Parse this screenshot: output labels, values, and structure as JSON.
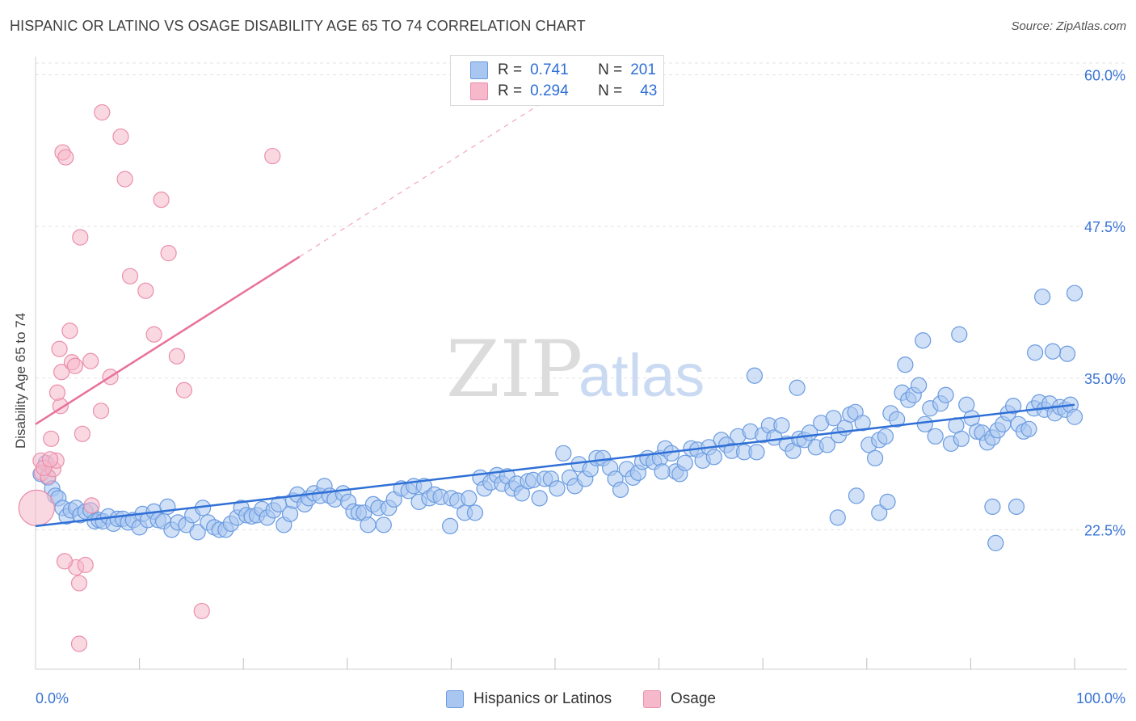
{
  "header": {
    "title": "HISPANIC OR LATINO VS OSAGE DISABILITY AGE 65 TO 74 CORRELATION CHART",
    "source": "Source: ZipAtlas.com"
  },
  "watermark": {
    "zip": "ZIP",
    "atlas": "atlas"
  },
  "legend": {
    "rows": [
      {
        "r_label": "R =",
        "r_value": "0.741",
        "n_label": "N =",
        "n_value": "201",
        "color": "#a9c6f0"
      },
      {
        "r_label": "R =",
        "r_value": "0.294",
        "n_label": "N =",
        "n_value": "43",
        "color": "#f6b8cb"
      }
    ]
  },
  "bottom_legend": [
    {
      "label": "Hispanics or Latinos",
      "color": "#a9c6f0"
    },
    {
      "label": "Osage",
      "color": "#f6b8cb"
    }
  ],
  "chart_data": {
    "type": "scatter",
    "title": "HISPANIC OR LATINO VS OSAGE DISABILITY AGE 65 TO 74 CORRELATION CHART",
    "xlabel": "",
    "ylabel": "Disability Age 65 to 74",
    "xlim": [
      0,
      100
    ],
    "ylim": [
      11,
      61.5
    ],
    "x_tick_labels": [
      "0.0%",
      "100.0%"
    ],
    "y_ticks": [
      22.5,
      35.0,
      47.5,
      60.0
    ],
    "y_tick_labels": [
      "22.5%",
      "35.0%",
      "47.5%",
      "60.0%"
    ],
    "grid": true,
    "legend_position": "top-center",
    "series": [
      {
        "name": "Hispanics or Latinos",
        "color": "#a9c6f0",
        "stroke": "#6a9be0",
        "trend": {
          "x": [
            0,
            100
          ],
          "y": [
            22.8,
            32.8
          ],
          "color": "#2f6fd6"
        },
        "points": [
          [
            0.5,
            27.1
          ],
          [
            1.0,
            28.0
          ],
          [
            1.2,
            26.8
          ],
          [
            1.6,
            25.9
          ],
          [
            1.9,
            25.3
          ],
          [
            2.2,
            25.1
          ],
          [
            2.6,
            24.3
          ],
          [
            3.0,
            23.6
          ],
          [
            3.4,
            24.1
          ],
          [
            3.9,
            24.3
          ],
          [
            4.3,
            23.7
          ],
          [
            4.8,
            24.0
          ],
          [
            5.3,
            24.1
          ],
          [
            5.7,
            23.2
          ],
          [
            6.1,
            23.3
          ],
          [
            6.5,
            23.2
          ],
          [
            7.0,
            23.6
          ],
          [
            7.5,
            23.0
          ],
          [
            7.9,
            23.4
          ],
          [
            8.4,
            23.4
          ],
          [
            8.9,
            23.1
          ],
          [
            9.4,
            23.3
          ],
          [
            10.0,
            22.7
          ],
          [
            10.3,
            23.8
          ],
          [
            10.8,
            23.3
          ],
          [
            11.4,
            24.0
          ],
          [
            11.8,
            23.3
          ],
          [
            12.3,
            23.2
          ],
          [
            12.7,
            24.4
          ],
          [
            13.1,
            22.5
          ],
          [
            13.7,
            23.1
          ],
          [
            14.5,
            22.9
          ],
          [
            15.1,
            23.7
          ],
          [
            15.6,
            22.3
          ],
          [
            16.1,
            24.3
          ],
          [
            16.6,
            23.1
          ],
          [
            17.2,
            22.7
          ],
          [
            17.7,
            22.5
          ],
          [
            18.3,
            22.5
          ],
          [
            18.8,
            23.0
          ],
          [
            19.4,
            23.5
          ],
          [
            19.8,
            24.3
          ],
          [
            20.3,
            23.7
          ],
          [
            20.8,
            23.6
          ],
          [
            21.3,
            23.7
          ],
          [
            21.8,
            24.2
          ],
          [
            22.3,
            23.5
          ],
          [
            22.9,
            24.1
          ],
          [
            23.4,
            24.6
          ],
          [
            23.9,
            22.9
          ],
          [
            24.5,
            23.8
          ],
          [
            24.8,
            24.9
          ],
          [
            25.2,
            25.4
          ],
          [
            25.9,
            24.6
          ],
          [
            26.3,
            25.1
          ],
          [
            26.8,
            25.5
          ],
          [
            27.4,
            25.3
          ],
          [
            27.8,
            26.1
          ],
          [
            28.3,
            25.3
          ],
          [
            28.8,
            25.0
          ],
          [
            29.6,
            25.5
          ],
          [
            30.1,
            24.8
          ],
          [
            30.6,
            24.0
          ],
          [
            31.1,
            23.9
          ],
          [
            31.6,
            23.9
          ],
          [
            32.0,
            22.9
          ],
          [
            32.5,
            24.6
          ],
          [
            33.0,
            24.3
          ],
          [
            33.5,
            22.9
          ],
          [
            34.0,
            24.3
          ],
          [
            34.5,
            25.0
          ],
          [
            35.2,
            25.9
          ],
          [
            35.9,
            25.7
          ],
          [
            36.4,
            26.1
          ],
          [
            36.9,
            24.8
          ],
          [
            37.4,
            26.1
          ],
          [
            37.9,
            25.1
          ],
          [
            38.4,
            25.4
          ],
          [
            39.0,
            25.2
          ],
          [
            40.0,
            25.1
          ],
          [
            40.6,
            24.9
          ],
          [
            41.3,
            23.9
          ],
          [
            41.7,
            25.1
          ],
          [
            42.3,
            23.9
          ],
          [
            42.8,
            26.8
          ],
          [
            43.2,
            25.9
          ],
          [
            43.8,
            26.4
          ],
          [
            44.4,
            27.0
          ],
          [
            44.9,
            26.3
          ],
          [
            45.4,
            26.9
          ],
          [
            45.9,
            25.9
          ],
          [
            46.3,
            26.3
          ],
          [
            46.8,
            25.5
          ],
          [
            47.4,
            26.5
          ],
          [
            47.9,
            26.6
          ],
          [
            48.5,
            25.1
          ],
          [
            49.0,
            26.7
          ],
          [
            49.6,
            26.7
          ],
          [
            50.2,
            25.9
          ],
          [
            50.8,
            28.8
          ],
          [
            51.4,
            26.8
          ],
          [
            51.9,
            26.1
          ],
          [
            52.3,
            27.9
          ],
          [
            52.9,
            26.7
          ],
          [
            53.4,
            27.5
          ],
          [
            54.0,
            28.4
          ],
          [
            54.6,
            28.4
          ],
          [
            55.3,
            27.6
          ],
          [
            55.8,
            26.7
          ],
          [
            56.3,
            25.8
          ],
          [
            56.9,
            27.5
          ],
          [
            57.5,
            26.8
          ],
          [
            58.0,
            27.2
          ],
          [
            58.4,
            28.1
          ],
          [
            58.9,
            28.4
          ],
          [
            59.5,
            28.1
          ],
          [
            60.1,
            28.4
          ],
          [
            60.6,
            29.2
          ],
          [
            61.2,
            28.8
          ],
          [
            61.6,
            27.3
          ],
          [
            62.0,
            27.1
          ],
          [
            62.5,
            28.0
          ],
          [
            63.1,
            29.2
          ],
          [
            63.7,
            29.1
          ],
          [
            64.2,
            28.2
          ],
          [
            64.8,
            29.3
          ],
          [
            65.3,
            28.5
          ],
          [
            66.0,
            29.9
          ],
          [
            66.5,
            29.5
          ],
          [
            67.0,
            29.0
          ],
          [
            67.6,
            30.2
          ],
          [
            68.2,
            28.9
          ],
          [
            68.8,
            30.6
          ],
          [
            69.4,
            28.9
          ],
          [
            70.0,
            30.3
          ],
          [
            70.6,
            31.1
          ],
          [
            71.1,
            30.1
          ],
          [
            71.8,
            31.1
          ],
          [
            72.3,
            29.6
          ],
          [
            72.9,
            29.0
          ],
          [
            73.5,
            30.0
          ],
          [
            74.0,
            29.9
          ],
          [
            74.5,
            30.5
          ],
          [
            75.1,
            29.3
          ],
          [
            75.6,
            31.3
          ],
          [
            76.2,
            29.5
          ],
          [
            76.8,
            31.7
          ],
          [
            77.3,
            30.3
          ],
          [
            77.9,
            30.9
          ],
          [
            78.4,
            32.0
          ],
          [
            78.9,
            32.2
          ],
          [
            79.6,
            31.3
          ],
          [
            80.2,
            29.5
          ],
          [
            80.8,
            28.4
          ],
          [
            81.2,
            29.9
          ],
          [
            81.8,
            30.2
          ],
          [
            82.3,
            32.1
          ],
          [
            82.9,
            31.6
          ],
          [
            83.4,
            33.8
          ],
          [
            84.0,
            33.2
          ],
          [
            84.5,
            33.6
          ],
          [
            85.0,
            34.4
          ],
          [
            85.6,
            31.2
          ],
          [
            86.1,
            32.5
          ],
          [
            86.6,
            30.2
          ],
          [
            87.1,
            32.9
          ],
          [
            87.6,
            33.6
          ],
          [
            88.1,
            29.6
          ],
          [
            88.6,
            31.1
          ],
          [
            89.1,
            30.0
          ],
          [
            89.6,
            32.8
          ],
          [
            90.1,
            31.7
          ],
          [
            90.6,
            30.6
          ],
          [
            91.1,
            30.5
          ],
          [
            91.6,
            29.7
          ],
          [
            92.1,
            30.1
          ],
          [
            92.6,
            30.7
          ],
          [
            93.1,
            31.2
          ],
          [
            93.6,
            32.1
          ],
          [
            94.1,
            32.7
          ],
          [
            94.6,
            31.2
          ],
          [
            95.1,
            30.6
          ],
          [
            95.6,
            30.8
          ],
          [
            96.1,
            32.5
          ],
          [
            96.6,
            33.0
          ],
          [
            97.1,
            32.4
          ],
          [
            97.6,
            32.9
          ],
          [
            98.1,
            32.1
          ],
          [
            98.6,
            32.6
          ],
          [
            99.1,
            32.4
          ],
          [
            99.6,
            32.8
          ],
          [
            100.0,
            31.8
          ],
          [
            69.2,
            35.2
          ],
          [
            73.3,
            34.2
          ],
          [
            88.9,
            38.6
          ],
          [
            85.4,
            38.1
          ],
          [
            83.7,
            36.1
          ],
          [
            99.3,
            37.0
          ],
          [
            96.2,
            37.1
          ],
          [
            97.9,
            37.2
          ],
          [
            96.9,
            41.7
          ],
          [
            100.0,
            42.0
          ],
          [
            94.4,
            24.4
          ],
          [
            92.1,
            24.4
          ],
          [
            92.4,
            21.4
          ],
          [
            81.2,
            23.9
          ],
          [
            82.0,
            24.8
          ],
          [
            79.0,
            25.3
          ],
          [
            77.2,
            23.5
          ],
          [
            60.3,
            27.3
          ],
          [
            39.9,
            22.8
          ]
        ]
      },
      {
        "name": "Osage",
        "color": "#f6b8cb",
        "stroke": "#ea8fab",
        "trend": {
          "x": [
            0,
            25.4
          ],
          "y": [
            31.2,
            45.0
          ],
          "color": "#e8729a",
          "dashed_to_x": 50.0
        },
        "points": [
          [
            0.1,
            24.3
          ],
          [
            0.5,
            28.2
          ],
          [
            0.6,
            27.2
          ],
          [
            1.2,
            26.9
          ],
          [
            1.5,
            30.0
          ],
          [
            1.7,
            27.5
          ],
          [
            2.0,
            28.2
          ],
          [
            2.4,
            32.7
          ],
          [
            2.1,
            33.8
          ],
          [
            2.3,
            37.4
          ],
          [
            2.5,
            35.5
          ],
          [
            2.6,
            53.6
          ],
          [
            2.9,
            53.2
          ],
          [
            3.3,
            38.9
          ],
          [
            3.5,
            36.3
          ],
          [
            3.8,
            36.0
          ],
          [
            3.9,
            19.4
          ],
          [
            4.2,
            18.1
          ],
          [
            4.3,
            46.6
          ],
          [
            4.5,
            30.4
          ],
          [
            4.8,
            19.6
          ],
          [
            5.3,
            36.4
          ],
          [
            5.4,
            24.5
          ],
          [
            6.3,
            32.3
          ],
          [
            6.4,
            56.9
          ],
          [
            7.2,
            35.1
          ],
          [
            8.2,
            54.9
          ],
          [
            8.6,
            51.4
          ],
          [
            9.1,
            43.4
          ],
          [
            10.6,
            42.2
          ],
          [
            11.4,
            38.6
          ],
          [
            12.1,
            49.7
          ],
          [
            12.8,
            45.3
          ],
          [
            13.6,
            36.8
          ],
          [
            14.3,
            34.0
          ],
          [
            16.0,
            15.8
          ],
          [
            22.8,
            53.3
          ],
          [
            2.8,
            19.9
          ],
          [
            4.2,
            13.1
          ],
          [
            0.8,
            27.6
          ],
          [
            1.4,
            28.3
          ]
        ]
      }
    ]
  }
}
